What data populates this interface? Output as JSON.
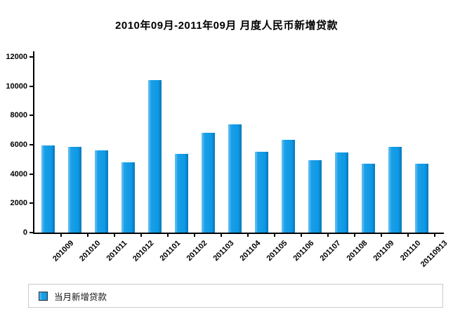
{
  "page": {
    "background": "#ffffff",
    "axis_color": "#000000",
    "text_color": "#000000"
  },
  "chart_data": {
    "type": "bar",
    "title": "2010年09月-2011年09月 月度人民币新增贷款",
    "categories": [
      "201009",
      "201010",
      "201011",
      "201012",
      "201101",
      "201102",
      "201103",
      "201104",
      "201105",
      "201106",
      "201107",
      "201108",
      "201109",
      "201110",
      "20110913"
    ],
    "values": [
      5955,
      5877,
      5640,
      4807,
      10400,
      5356,
      6794,
      7396,
      5516,
      6339,
      4926,
      5485,
      4700,
      5880,
      4700
    ],
    "series": [
      {
        "name": "当月新增贷款",
        "values": [
          5955,
          5877,
          5640,
          4807,
          10400,
          5356,
          6794,
          7396,
          5516,
          6339,
          4926,
          5485,
          4700,
          5880,
          4700
        ]
      }
    ],
    "xlabel": "",
    "ylabel": "",
    "ylim": [
      0,
      12000
    ],
    "yticks": [
      0,
      2000,
      4000,
      6000,
      8000,
      10000,
      12000
    ],
    "grid": false,
    "legend_position": "bottom",
    "x_label_rotation_deg": -45,
    "bar_color": "#0F97E3",
    "bar_color_light": "#5BB9EF",
    "bar_color_dark": "#0A80C2"
  },
  "legend": {
    "items": [
      {
        "label": "当月新增贷款",
        "color": "#0F97E3"
      }
    ]
  }
}
